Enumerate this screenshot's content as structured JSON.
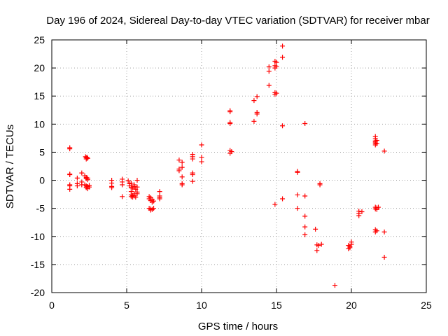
{
  "chart_data": {
    "type": "scatter",
    "title": "Day 196 of 2024, Sidereal Day-to-day VTEC variation (SDTVAR) for receiver mbar",
    "xlabel": "GPS time / hours",
    "ylabel": "SDTVAR / TECUs",
    "xlim": [
      0,
      25
    ],
    "ylim": [
      -20,
      25
    ],
    "xticks": [
      "0",
      "5",
      "10",
      "15",
      "20",
      "25"
    ],
    "yticks": [
      "-20",
      "-15",
      "-10",
      "-5",
      "0",
      "5",
      "10",
      "15",
      "20",
      "25"
    ],
    "grid": true,
    "marker": "plus",
    "marker_color": "#ff0000",
    "series": [
      {
        "name": "SDTVAR",
        "points": [
          [
            1.2,
            5.8
          ],
          [
            1.2,
            5.6
          ],
          [
            1.2,
            1.1
          ],
          [
            1.2,
            1.0
          ],
          [
            1.2,
            -0.8
          ],
          [
            1.2,
            -1.0
          ],
          [
            1.2,
            -1.6
          ],
          [
            1.7,
            0.4
          ],
          [
            1.7,
            -0.6
          ],
          [
            1.7,
            -1.0
          ],
          [
            2.0,
            1.3
          ],
          [
            2.0,
            -0.3
          ],
          [
            2.0,
            -0.8
          ],
          [
            2.25,
            4.2
          ],
          [
            2.3,
            4.0
          ],
          [
            2.3,
            3.8
          ],
          [
            2.35,
            4.1
          ],
          [
            2.4,
            3.9
          ],
          [
            2.2,
            0.8
          ],
          [
            2.3,
            0.5
          ],
          [
            2.3,
            0.3
          ],
          [
            2.4,
            0.4
          ],
          [
            2.4,
            0.1
          ],
          [
            2.2,
            -0.8
          ],
          [
            2.3,
            -1.0
          ],
          [
            2.3,
            -1.3
          ],
          [
            2.4,
            -1.1
          ],
          [
            2.4,
            -1.5
          ],
          [
            2.5,
            -0.9
          ],
          [
            2.5,
            -1.2
          ],
          [
            4.0,
            0.0
          ],
          [
            4.0,
            -0.5
          ],
          [
            4.0,
            -1.1
          ],
          [
            4.0,
            -1.3
          ],
          [
            4.7,
            0.2
          ],
          [
            4.7,
            -0.3
          ],
          [
            4.7,
            -0.8
          ],
          [
            4.7,
            -2.9
          ],
          [
            5.1,
            -0.1
          ],
          [
            5.2,
            -0.6
          ],
          [
            5.2,
            -1.0
          ],
          [
            5.3,
            -1.3
          ],
          [
            5.3,
            -0.5
          ],
          [
            5.3,
            -2.0
          ],
          [
            5.3,
            -2.6
          ],
          [
            5.3,
            -2.9
          ],
          [
            5.4,
            -2.7
          ],
          [
            5.4,
            -3.0
          ],
          [
            5.4,
            -1.4
          ],
          [
            5.5,
            -1.1
          ],
          [
            5.5,
            -0.8
          ],
          [
            5.5,
            -2.4
          ],
          [
            5.5,
            -2.8
          ],
          [
            5.6,
            -1.6
          ],
          [
            5.6,
            -3.0
          ],
          [
            5.7,
            0.0
          ],
          [
            5.7,
            -1.2
          ],
          [
            5.7,
            -2.1
          ],
          [
            5.7,
            -2.4
          ],
          [
            6.5,
            -2.9
          ],
          [
            6.5,
            -3.3
          ],
          [
            6.6,
            -3.6
          ],
          [
            6.6,
            -3.1
          ],
          [
            6.7,
            -3.9
          ],
          [
            6.7,
            -3.4
          ],
          [
            6.8,
            -3.7
          ],
          [
            6.5,
            -5.0
          ],
          [
            6.6,
            -5.3
          ],
          [
            6.6,
            -5.1
          ],
          [
            6.7,
            -5.2
          ],
          [
            6.8,
            -5.0
          ],
          [
            7.2,
            -2.0
          ],
          [
            7.2,
            -2.8
          ],
          [
            7.2,
            -3.1
          ],
          [
            7.2,
            -3.3
          ],
          [
            8.5,
            3.6
          ],
          [
            8.5,
            2.0
          ],
          [
            8.5,
            1.7
          ],
          [
            8.7,
            3.2
          ],
          [
            8.7,
            2.3
          ],
          [
            8.7,
            0.6
          ],
          [
            8.7,
            -0.6
          ],
          [
            8.7,
            -0.8
          ],
          [
            9.4,
            4.6
          ],
          [
            9.4,
            4.2
          ],
          [
            9.4,
            3.8
          ],
          [
            9.4,
            1.3
          ],
          [
            9.4,
            1.0
          ],
          [
            9.4,
            -0.2
          ],
          [
            10.0,
            6.3
          ],
          [
            10.0,
            4.1
          ],
          [
            10.0,
            3.3
          ],
          [
            11.9,
            12.4
          ],
          [
            11.9,
            12.2
          ],
          [
            11.9,
            10.3
          ],
          [
            11.9,
            10.1
          ],
          [
            11.9,
            5.3
          ],
          [
            11.9,
            4.8
          ],
          [
            12.0,
            5.1
          ],
          [
            13.5,
            14.2
          ],
          [
            13.5,
            10.5
          ],
          [
            13.7,
            14.9
          ],
          [
            13.7,
            12.1
          ],
          [
            13.7,
            11.8
          ],
          [
            14.5,
            20.2
          ],
          [
            14.5,
            19.4
          ],
          [
            14.5,
            16.9
          ],
          [
            14.9,
            21.2
          ],
          [
            14.9,
            20.4
          ],
          [
            14.9,
            20.0
          ],
          [
            15.0,
            21.0
          ],
          [
            15.0,
            20.3
          ],
          [
            14.9,
            15.6
          ],
          [
            14.9,
            15.3
          ],
          [
            15.0,
            15.5
          ],
          [
            14.9,
            -4.3
          ],
          [
            15.4,
            23.9
          ],
          [
            15.4,
            21.9
          ],
          [
            15.4,
            9.7
          ],
          [
            15.4,
            -3.3
          ],
          [
            16.4,
            1.6
          ],
          [
            16.4,
            1.4
          ],
          [
            16.4,
            -2.6
          ],
          [
            16.4,
            -5.0
          ],
          [
            16.9,
            10.1
          ],
          [
            16.9,
            -2.8
          ],
          [
            16.9,
            -6.4
          ],
          [
            16.9,
            -8.3
          ],
          [
            16.9,
            -9.7
          ],
          [
            17.6,
            -8.7
          ],
          [
            17.7,
            -11.5
          ],
          [
            17.7,
            -12.5
          ],
          [
            17.8,
            -11.6
          ],
          [
            17.9,
            -0.8
          ],
          [
            17.9,
            -0.6
          ],
          [
            18.0,
            -11.4
          ],
          [
            18.9,
            -18.7
          ],
          [
            19.8,
            -11.6
          ],
          [
            19.8,
            -12.2
          ],
          [
            19.9,
            -11.8
          ],
          [
            19.9,
            -12.0
          ],
          [
            20.0,
            -11.4
          ],
          [
            20.0,
            -11.0
          ],
          [
            20.5,
            -5.5
          ],
          [
            20.5,
            -5.9
          ],
          [
            20.5,
            -6.3
          ],
          [
            20.7,
            -5.6
          ],
          [
            21.6,
            7.8
          ],
          [
            21.6,
            7.4
          ],
          [
            21.6,
            7.0
          ],
          [
            21.6,
            6.8
          ],
          [
            21.6,
            6.6
          ],
          [
            21.6,
            6.3
          ],
          [
            21.7,
            7.1
          ],
          [
            21.7,
            6.5
          ],
          [
            21.6,
            -4.8
          ],
          [
            21.6,
            -5.1
          ],
          [
            21.7,
            -4.9
          ],
          [
            21.7,
            -5.2
          ],
          [
            21.8,
            -4.8
          ],
          [
            21.6,
            -8.8
          ],
          [
            21.6,
            -9.2
          ],
          [
            21.7,
            -9.0
          ],
          [
            22.2,
            5.2
          ],
          [
            22.2,
            -9.2
          ],
          [
            22.2,
            -13.7
          ]
        ]
      }
    ]
  }
}
